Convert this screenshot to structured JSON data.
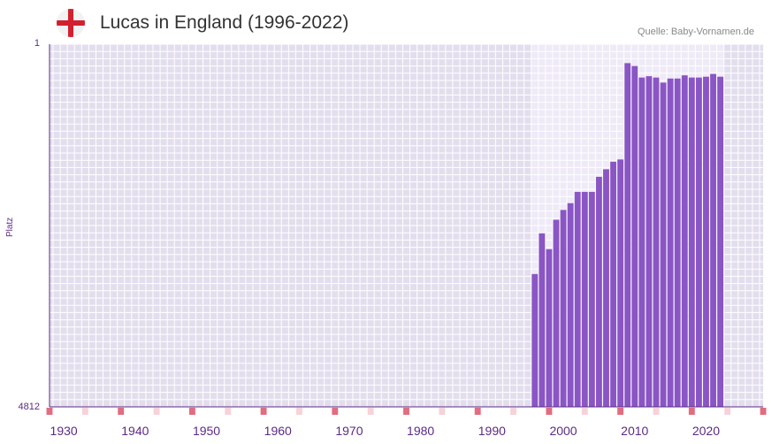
{
  "header": {
    "title": "Lucas in England (1996-2022)",
    "source": "Quelle: Baby-Vornamen.de",
    "flag_icon": "england-flag-icon"
  },
  "colors": {
    "bar": "#8a55c4",
    "plot_bg_out": "#e3deed",
    "plot_bg_in": "#efeaf7",
    "grid": "#ffffff",
    "axis_text": "#5b2a86",
    "tick_marker": "#e06d80",
    "tick_marker_light": "#f6d2da"
  },
  "chart_data": {
    "type": "bar",
    "title": "Lucas in England (1996-2022)",
    "xlabel": "",
    "ylabel": "Platz",
    "y_top_label": "1",
    "y_bottom_label": "4812",
    "ylim": [
      4812,
      1
    ],
    "y_reversed": true,
    "x_range": [
      1928,
      2028
    ],
    "x_ticks": [
      1930,
      1940,
      1950,
      1960,
      1970,
      1980,
      1990,
      2000,
      2010,
      2020
    ],
    "highlight_range": [
      1996,
      2022
    ],
    "years": [
      1996,
      1997,
      1998,
      1999,
      2000,
      2001,
      2002,
      2003,
      2004,
      2005,
      2006,
      2007,
      2008,
      2009,
      2010,
      2011,
      2012,
      2013,
      2014,
      2015,
      2016,
      2017,
      2018,
      2019,
      2020,
      2021,
      2022
    ],
    "ranks": [
      3050,
      2510,
      2720,
      2330,
      2200,
      2110,
      1960,
      1960,
      1960,
      1760,
      1660,
      1560,
      1530,
      252,
      290,
      443,
      425,
      443,
      510,
      456,
      456,
      414,
      443,
      443,
      432,
      395,
      432
    ]
  }
}
